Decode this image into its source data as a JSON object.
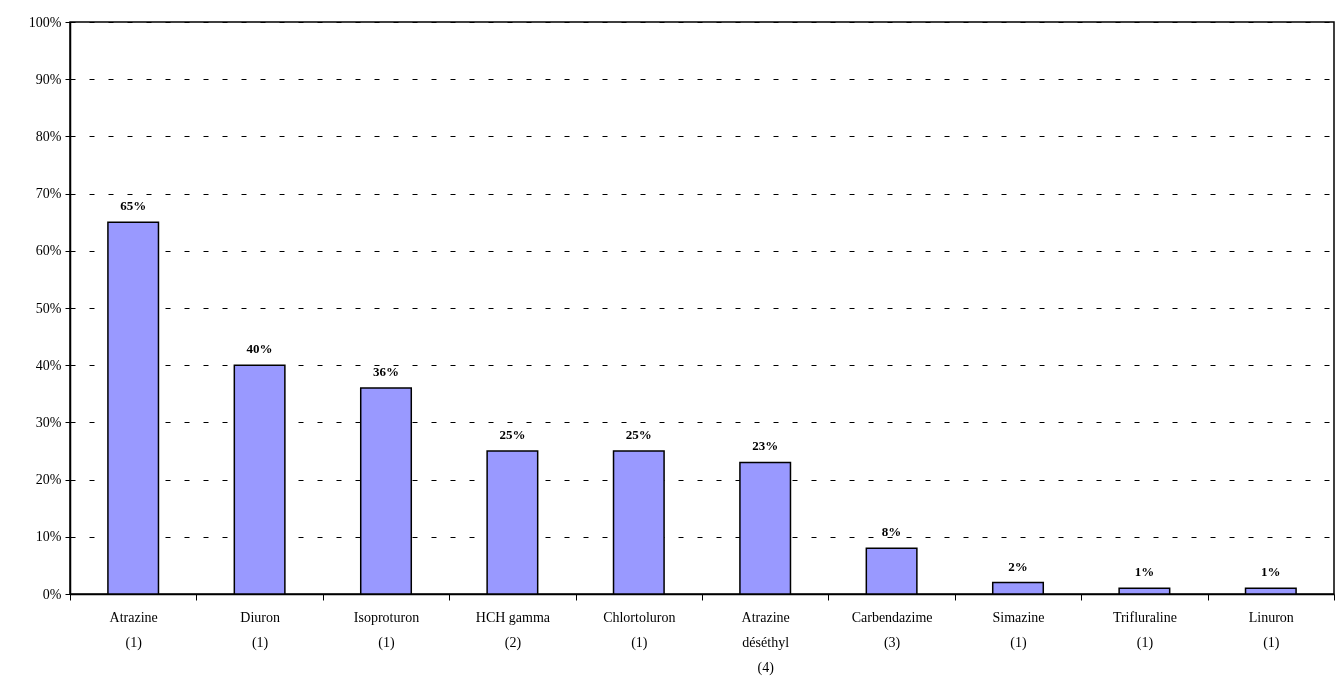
{
  "chart_data": {
    "type": "bar",
    "categories": [
      "Atrazine\n(1)",
      "Diuron\n(1)",
      "Isoproturon\n(1)",
      "HCH gamma\n(2)",
      "Chlortoluron\n(1)",
      "Atrazine\ndéséthyl\n(4)",
      "Carbendazime\n\n(3)",
      "Simazine\n(1)",
      "Trifluraline\n(1)",
      "Linuron\n(1)"
    ],
    "values": [
      65,
      40,
      36,
      25,
      25,
      23,
      8,
      2,
      1,
      1
    ],
    "value_labels": [
      "65%",
      "40%",
      "36%",
      "25%",
      "25%",
      "23%",
      "8%",
      "2%",
      "1%",
      "1%"
    ],
    "color": "#9999ff",
    "ylim": [
      0,
      100
    ],
    "yticks": [
      {
        "value": 0,
        "label": "0%"
      },
      {
        "value": 10,
        "label": "10%"
      },
      {
        "value": 20,
        "label": "20%"
      },
      {
        "value": 30,
        "label": "30%"
      },
      {
        "value": 40,
        "label": "40%"
      },
      {
        "value": 50,
        "label": "50%"
      },
      {
        "value": 60,
        "label": "60%"
      },
      {
        "value": 70,
        "label": "70%"
      },
      {
        "value": 80,
        "label": "80%"
      },
      {
        "value": 90,
        "label": "90%"
      },
      {
        "value": 100,
        "label": "100%"
      }
    ],
    "grid": "y"
  }
}
